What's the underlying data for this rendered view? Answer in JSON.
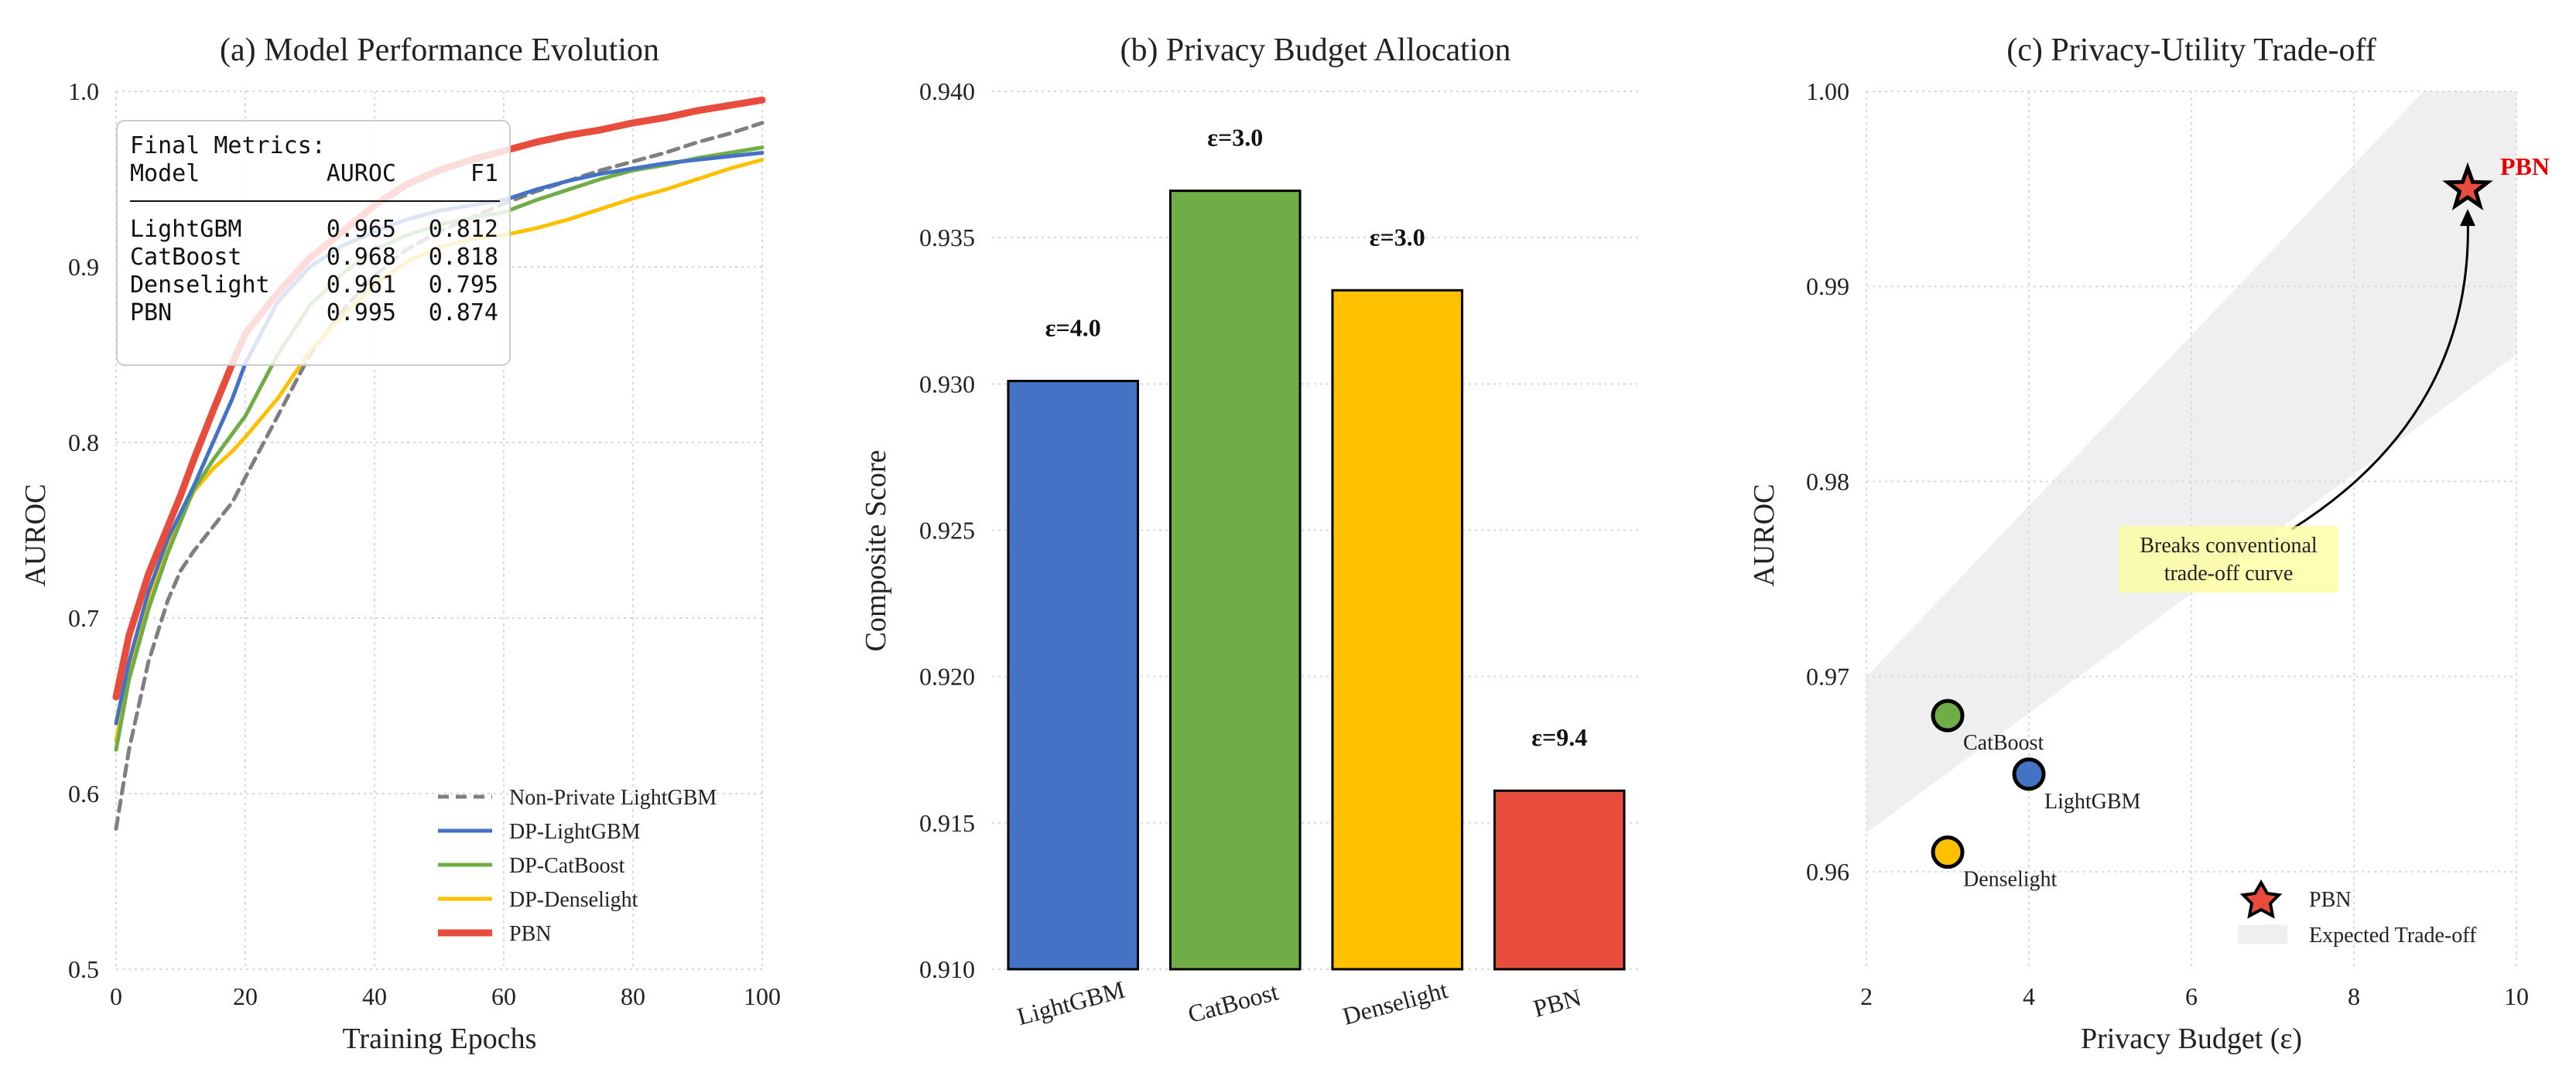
{
  "colors": {
    "lightgbm": "#4472C4",
    "catboost": "#70AD47",
    "denselight": "#FFC000",
    "pbn": "#E74C3C",
    "nonprivate": "#7F7F7F",
    "grid": "#d9d9d9",
    "band": "#efefef",
    "annotation_bg": "#FFFF99"
  },
  "chart_data": [
    {
      "type": "line",
      "title": "(a) Model Performance Evolution",
      "xlabel": "Training Epochs",
      "ylabel": "AUROC",
      "xlim": [
        0,
        100
      ],
      "ylim": [
        0.5,
        1.0
      ],
      "xticks": [
        "0",
        "20",
        "40",
        "60",
        "80",
        "100"
      ],
      "yticks": [
        "0.5",
        "0.6",
        "0.7",
        "0.8",
        "0.9",
        "1.0"
      ],
      "x": [
        0,
        2,
        5,
        8,
        10,
        12,
        15,
        18,
        20,
        25,
        30,
        35,
        40,
        45,
        50,
        55,
        60,
        65,
        70,
        75,
        80,
        85,
        90,
        95,
        100
      ],
      "series": [
        {
          "name": "Non-Private LightGBM",
          "style": "dashed",
          "values": [
            0.58,
            0.625,
            0.675,
            0.71,
            0.727,
            0.738,
            0.752,
            0.766,
            0.78,
            0.815,
            0.85,
            0.875,
            0.895,
            0.91,
            0.92,
            0.928,
            0.936,
            0.943,
            0.949,
            0.955,
            0.96,
            0.965,
            0.971,
            0.976,
            0.982
          ]
        },
        {
          "name": "DP-LightGBM",
          "style": "solid",
          "values": [
            0.64,
            0.675,
            0.715,
            0.745,
            0.76,
            0.775,
            0.8,
            0.825,
            0.845,
            0.88,
            0.9,
            0.912,
            0.92,
            0.927,
            0.932,
            0.935,
            0.938,
            0.944,
            0.949,
            0.953,
            0.956,
            0.959,
            0.961,
            0.963,
            0.965
          ]
        },
        {
          "name": "DP-CatBoost",
          "style": "solid",
          "values": [
            0.625,
            0.665,
            0.705,
            0.737,
            0.755,
            0.773,
            0.79,
            0.805,
            0.815,
            0.85,
            0.878,
            0.896,
            0.91,
            0.918,
            0.924,
            0.928,
            0.931,
            0.938,
            0.944,
            0.95,
            0.955,
            0.958,
            0.962,
            0.965,
            0.968
          ]
        },
        {
          "name": "DP-Denselight",
          "style": "solid",
          "values": [
            0.63,
            0.668,
            0.71,
            0.74,
            0.757,
            0.772,
            0.785,
            0.795,
            0.803,
            0.825,
            0.852,
            0.872,
            0.89,
            0.903,
            0.911,
            0.916,
            0.918,
            0.922,
            0.927,
            0.933,
            0.939,
            0.944,
            0.95,
            0.956,
            0.961
          ]
        },
        {
          "name": "PBN",
          "style": "solid",
          "values": [
            0.655,
            0.69,
            0.725,
            0.752,
            0.77,
            0.79,
            0.818,
            0.845,
            0.862,
            0.885,
            0.905,
            0.92,
            0.935,
            0.947,
            0.955,
            0.961,
            0.966,
            0.971,
            0.975,
            0.978,
            0.982,
            0.985,
            0.989,
            0.992,
            0.995
          ]
        }
      ],
      "legend_position": "bottom-right",
      "metrics_box": {
        "title": "Final Metrics:",
        "headers": [
          "Model",
          "AUROC",
          "F1"
        ],
        "rows": [
          [
            "LightGBM",
            "0.965",
            "0.812"
          ],
          [
            "CatBoost",
            "0.968",
            "0.818"
          ],
          [
            "Denselight",
            "0.961",
            "0.795"
          ],
          [
            "PBN",
            "0.995",
            "0.874"
          ]
        ]
      }
    },
    {
      "type": "bar",
      "title": "(b) Privacy Budget Allocation",
      "xlabel": "",
      "ylabel": "Composite Score",
      "ylim": [
        0.91,
        0.94
      ],
      "yticks": [
        "0.910",
        "0.915",
        "0.920",
        "0.925",
        "0.930",
        "0.935",
        "0.940"
      ],
      "categories": [
        "LightGBM",
        "CatBoost",
        "Denselight",
        "PBN"
      ],
      "values": [
        0.9301,
        0.9366,
        0.9332,
        0.9161
      ],
      "labels": [
        "ε=4.0",
        "ε=3.0",
        "ε=3.0",
        "ε=9.4"
      ]
    },
    {
      "type": "scatter",
      "title": "(c) Privacy-Utility Trade-off",
      "xlabel": "Privacy Budget (ε)",
      "ylabel": "AUROC",
      "xlim": [
        2,
        10
      ],
      "ylim": [
        0.955,
        1.0
      ],
      "xticks": [
        "2",
        "4",
        "6",
        "8",
        "10"
      ],
      "yticks": [
        "0.96",
        "0.97",
        "0.98",
        "0.99",
        "1.00"
      ],
      "points": [
        {
          "name": "CatBoost",
          "x": 3.0,
          "y": 0.968
        },
        {
          "name": "LightGBM",
          "x": 4.0,
          "y": 0.965
        },
        {
          "name": "Denselight",
          "x": 3.0,
          "y": 0.961
        },
        {
          "name": "PBN",
          "x": 9.4,
          "y": 0.995
        }
      ],
      "pbn_label": "PBN",
      "expected_band": {
        "x": [
          2,
          10
        ],
        "lower": [
          0.962,
          0.9865
        ],
        "upper": [
          0.97,
          1.005
        ]
      },
      "annotation": {
        "lines": [
          "Breaks conventional",
          "trade-off curve"
        ],
        "x": 6.0,
        "y": 0.9765
      },
      "legend": [
        "PBN",
        "Expected Trade-off"
      ]
    }
  ]
}
